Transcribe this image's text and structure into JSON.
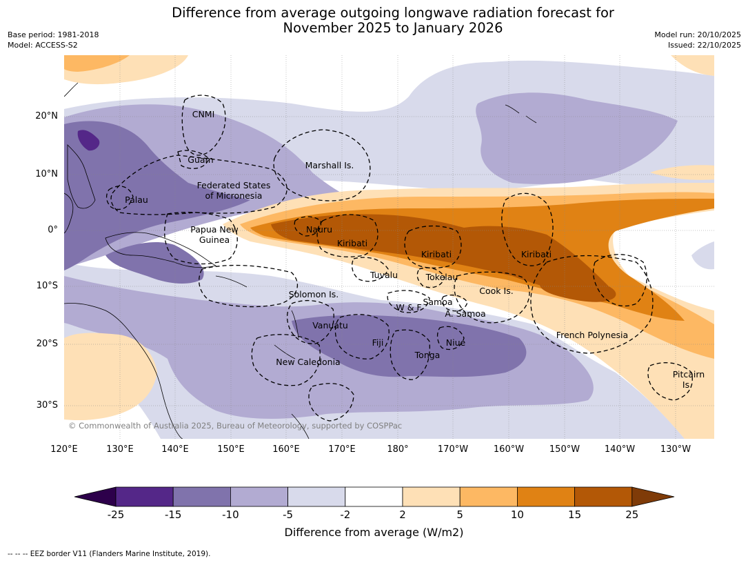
{
  "title_line1": "Difference from average outgoing longwave radiation forecast for",
  "title_line2": "November 2025 to January 2026",
  "base_period": "Base period: 1981-2018",
  "model": "Model: ACCESS-S2",
  "model_run": "Model run: 20/10/2025",
  "issued": "Issued: 22/10/2025",
  "copyright": "© Commonwealth of Australia 2025, Bureau of Meteorology, supported by COSPPac",
  "lat_ticks": [
    "20°N",
    "10°N",
    "0°",
    "10°S",
    "20°S",
    "30°S"
  ],
  "lon_ticks": [
    "120°E",
    "130°E",
    "140°E",
    "150°E",
    "160°E",
    "170°E",
    "180°",
    "170°W",
    "160°W",
    "150°W",
    "140°W",
    "130°W"
  ],
  "region_labels": {
    "cnmi": "CNMI",
    "guam": "Guam",
    "marshall": "Marshall Is.",
    "fsm_1": "Federated States",
    "fsm_2": "of Micronesia",
    "palau": "Palau",
    "png_1": "Papua New",
    "png_2": "Guinea",
    "nauru": "Nauru",
    "kiribati_w": "Kiribati",
    "kiribati_c": "Kiribati",
    "kiribati_e": "Kiribati",
    "tuvalu": "Tuvalu",
    "tokelau": "Tokelau",
    "cook": "Cook Is.",
    "solomon": "Solomon Is.",
    "wf": "W & F",
    "samoa": "Samoa",
    "asamoa": "A. Samoa",
    "vanuatu": "Vanuatu",
    "fiji": "Fiji",
    "niue": "Niue",
    "tonga": "Tonga",
    "newcal": "New Caledonia",
    "frpoly": "French Polynesia",
    "pitcairn_1": "Pitcairn",
    "pitcairn_2": "Is."
  },
  "legend": {
    "colors": [
      "#2d004b",
      "#542788",
      "#8073ac",
      "#b2abd2",
      "#d8daeb",
      "#ffffff",
      "#fee0b6",
      "#fdb863",
      "#e08214",
      "#b35806",
      "#7f3b08"
    ],
    "ticks": [
      "-25",
      "-15",
      "-10",
      "-5",
      "-2",
      "2",
      "5",
      "10",
      "15",
      "25"
    ],
    "title": "Difference from average (W/m2)"
  },
  "footnote": "--  --  -- EEZ border V11 (Flanders Marine Institute, 2019)."
}
